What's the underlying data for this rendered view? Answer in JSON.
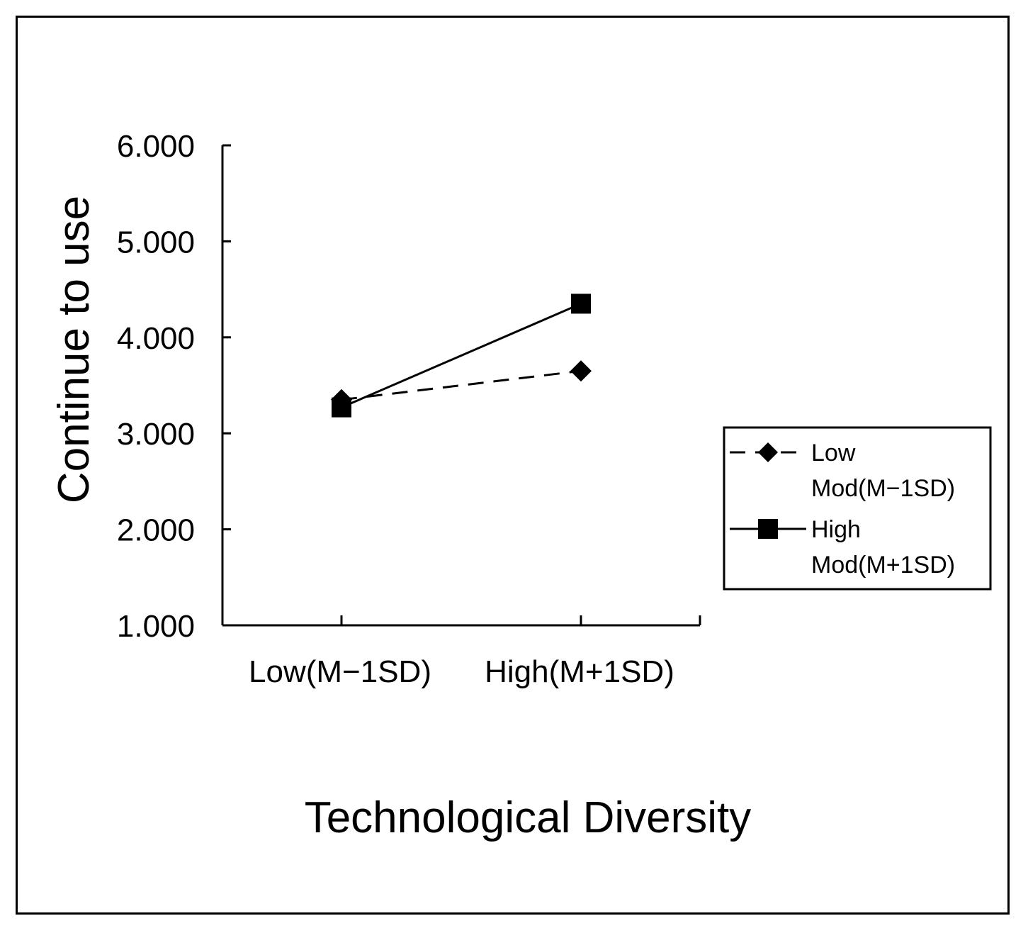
{
  "chart_data": {
    "type": "line",
    "title": "",
    "xlabel": "Technological Diversity",
    "ylabel": "Continue to use",
    "categories": [
      "Low(M−1SD)",
      "High(M+1SD)"
    ],
    "y_ticks": [
      "1.000",
      "2.000",
      "3.000",
      "4.000",
      "5.000",
      "6.000"
    ],
    "ylim": [
      1,
      6
    ],
    "grid": false,
    "legend_position": "right",
    "series": [
      {
        "name_lines": [
          "Low",
          "Mod(M−1SD)"
        ],
        "values": [
          3.35,
          3.65
        ],
        "marker": "diamond",
        "line_style": "dashed",
        "color": "#000000"
      },
      {
        "name_lines": [
          "High",
          "Mod(M+1SD)"
        ],
        "values": [
          3.27,
          4.35
        ],
        "marker": "square",
        "line_style": "solid",
        "color": "#000000"
      }
    ]
  }
}
